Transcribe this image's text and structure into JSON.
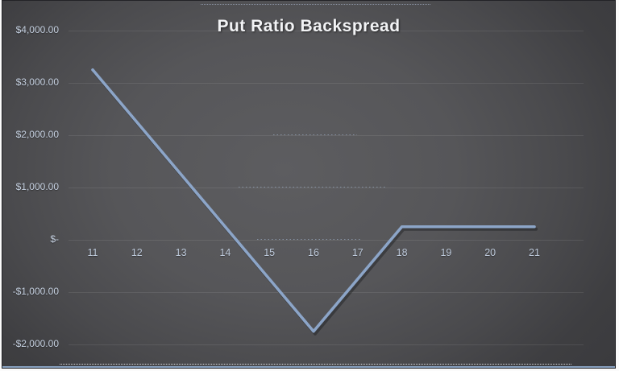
{
  "colors": {
    "line": "#8CA5C8",
    "line_shadow": "rgba(20,22,26,0.40)",
    "gridline": "rgba(255,255,255,0.09)",
    "dotted_gridline": "rgba(168,188,215,0.55)",
    "title_text": "#F2F3F5",
    "axis_text": "#C5D0E0",
    "background_center": "#5D5D60",
    "background_edge": "#39393C",
    "bottom_accent": "#8AA3C2"
  },
  "chart_data": {
    "type": "line",
    "title": "Put Ratio Backspread",
    "xlabel": "",
    "ylabel": "",
    "x": [
      11,
      12,
      13,
      14,
      15,
      16,
      17,
      18,
      19,
      20,
      21
    ],
    "values": [
      3250,
      2250,
      1250,
      250,
      -750,
      -1750,
      -750,
      250,
      250,
      250,
      250
    ],
    "ylim": [
      -2000,
      4000
    ],
    "ytick_values": [
      4000,
      3000,
      2000,
      1000,
      0,
      -1000,
      -2000
    ],
    "ytick_labels": [
      "$4,000.00",
      "$3,000.00",
      "$2,000.00",
      "$1,000.00",
      "$-",
      "-$1,000.00",
      "-$2,000.00"
    ],
    "xtick_labels": [
      "11",
      "12",
      "13",
      "14",
      "15",
      "16",
      "17",
      "18",
      "19",
      "20",
      "21"
    ],
    "grid": true,
    "legend": "none"
  }
}
